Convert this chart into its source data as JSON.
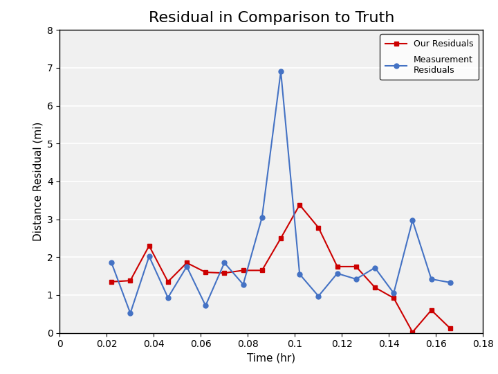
{
  "title": "Residual in Comparison to Truth",
  "xlabel": "Time (hr)",
  "ylabel": "Distance Residual (mi)",
  "xlim": [
    0,
    0.18
  ],
  "ylim": [
    0,
    8
  ],
  "xticks": [
    0,
    0.02,
    0.04,
    0.06,
    0.08,
    0.1,
    0.12,
    0.14,
    0.16,
    0.18
  ],
  "yticks": [
    0,
    1,
    2,
    3,
    4,
    5,
    6,
    7,
    8
  ],
  "our_residuals_x": [
    0.022,
    0.03,
    0.038,
    0.046,
    0.054,
    0.062,
    0.07,
    0.078,
    0.086,
    0.094,
    0.102,
    0.11,
    0.118,
    0.126,
    0.134,
    0.142,
    0.15,
    0.158,
    0.166
  ],
  "our_residuals_y": [
    1.35,
    1.38,
    2.3,
    1.35,
    1.85,
    1.6,
    1.58,
    1.65,
    1.65,
    2.5,
    3.38,
    2.78,
    1.75,
    1.75,
    1.2,
    0.92,
    0.02,
    0.6,
    0.12
  ],
  "measurement_residuals_x": [
    0.022,
    0.03,
    0.038,
    0.046,
    0.054,
    0.062,
    0.07,
    0.078,
    0.086,
    0.094,
    0.102,
    0.11,
    0.118,
    0.126,
    0.134,
    0.142,
    0.15,
    0.158,
    0.166
  ],
  "measurement_residuals_y": [
    1.85,
    0.52,
    2.02,
    0.93,
    1.75,
    0.72,
    1.85,
    1.28,
    3.05,
    6.9,
    1.55,
    0.97,
    1.57,
    1.42,
    1.72,
    1.05,
    2.97,
    1.42,
    1.33
  ],
  "our_color": "#cc0000",
  "measurement_color": "#4472c4",
  "our_marker": "s",
  "measurement_marker": "o",
  "linewidth": 1.5,
  "markersize": 5,
  "title_fontsize": 16,
  "axis_label_fontsize": 11,
  "tick_fontsize": 10,
  "background_color": "#ffffff",
  "plot_bg_color": "#f0f0f0",
  "grid_color": "#ffffff",
  "grid_linewidth": 1.2
}
